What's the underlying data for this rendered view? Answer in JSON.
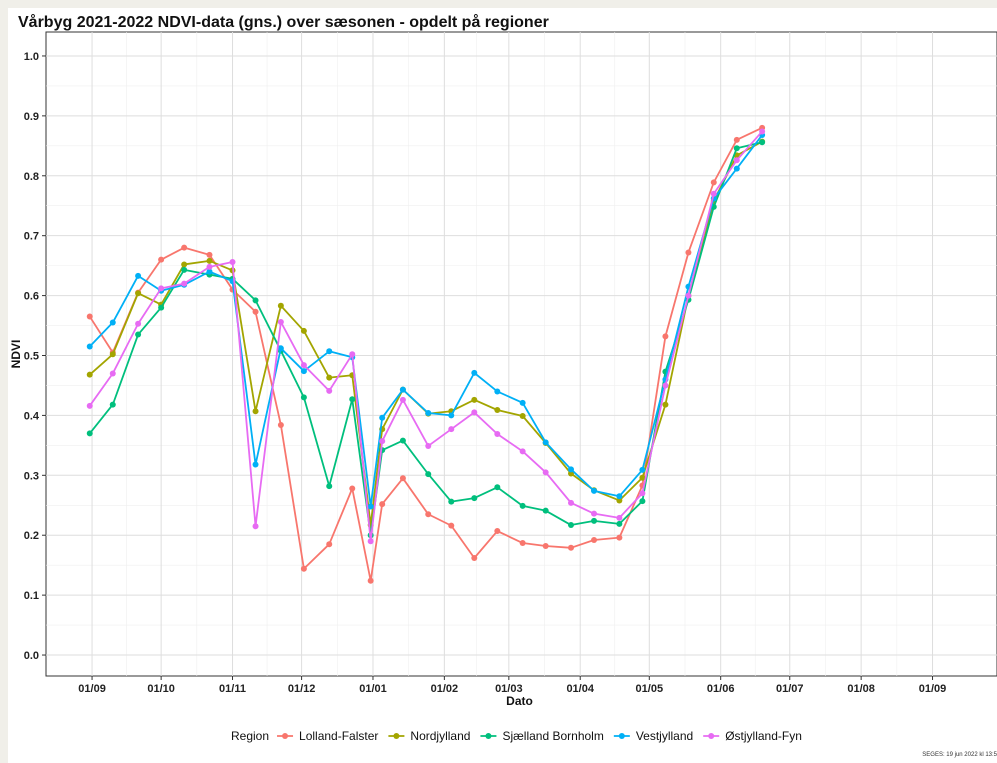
{
  "chart_data": {
    "type": "line",
    "title": "Vårbyg 2021-2022 NDVI-data (gns.) over sæsonen - opdelt på regioner",
    "xlabel": "Dato",
    "ylabel": "NDVI",
    "legend_title": "Region",
    "legend_position": "bottom",
    "grid": true,
    "ylim": [
      -0.035,
      1.04
    ],
    "xlim": [
      "2021-08-12",
      "2022-09-29"
    ],
    "yticks": [
      "0.0",
      "0.1",
      "0.2",
      "0.3",
      "0.4",
      "0.5",
      "0.6",
      "0.7",
      "0.8",
      "0.9",
      "1.0"
    ],
    "xtick_labels": [
      "01/09",
      "01/10",
      "01/11",
      "01/12",
      "01/01",
      "01/02",
      "01/03",
      "01/04",
      "01/05",
      "01/06",
      "01/07",
      "01/08",
      "01/09"
    ],
    "xtick_dates": [
      "2021-09-01",
      "2021-10-01",
      "2021-11-01",
      "2021-12-01",
      "2022-01-01",
      "2022-02-01",
      "2022-03-01",
      "2022-04-01",
      "2022-05-01",
      "2022-06-01",
      "2022-07-01",
      "2022-08-01",
      "2022-09-01"
    ],
    "series": [
      {
        "name": "Lolland-Falster",
        "color": "#F8766D",
        "points": [
          [
            "2021-08-31",
            0.565
          ],
          [
            "2021-09-10",
            0.505
          ],
          [
            "2021-09-21",
            0.605
          ],
          [
            "2021-10-01",
            0.66
          ],
          [
            "2021-10-11",
            0.68
          ],
          [
            "2021-10-22",
            0.668
          ],
          [
            "2021-11-01",
            0.61
          ],
          [
            "2021-11-11",
            0.573
          ],
          [
            "2021-11-22",
            0.384
          ],
          [
            "2021-12-02",
            0.144
          ],
          [
            "2021-12-13",
            0.185
          ],
          [
            "2021-12-23",
            0.278
          ],
          [
            "2021-12-31",
            0.124
          ],
          [
            "2022-01-05",
            0.252
          ],
          [
            "2022-01-14",
            0.295
          ],
          [
            "2022-01-25",
            0.235
          ],
          [
            "2022-02-04",
            0.216
          ],
          [
            "2022-02-14",
            0.162
          ],
          [
            "2022-02-24",
            0.207
          ],
          [
            "2022-03-07",
            0.187
          ],
          [
            "2022-03-17",
            0.182
          ],
          [
            "2022-03-28",
            0.179
          ],
          [
            "2022-04-07",
            0.192
          ],
          [
            "2022-04-18",
            0.196
          ],
          [
            "2022-04-28",
            0.283
          ],
          [
            "2022-05-08",
            0.532
          ],
          [
            "2022-05-18",
            0.672
          ],
          [
            "2022-05-29",
            0.789
          ],
          [
            "2022-06-08",
            0.86
          ],
          [
            "2022-06-19",
            0.88
          ]
        ]
      },
      {
        "name": "Nordjylland",
        "color": "#A3A500",
        "points": [
          [
            "2021-08-31",
            0.468
          ],
          [
            "2021-09-10",
            0.502
          ],
          [
            "2021-09-21",
            0.604
          ],
          [
            "2021-10-01",
            0.585
          ],
          [
            "2021-10-11",
            0.652
          ],
          [
            "2021-10-22",
            0.658
          ],
          [
            "2021-11-01",
            0.642
          ],
          [
            "2021-11-11",
            0.407
          ],
          [
            "2021-11-22",
            0.583
          ],
          [
            "2021-12-02",
            0.541
          ],
          [
            "2021-12-13",
            0.463
          ],
          [
            "2021-12-23",
            0.467
          ],
          [
            "2021-12-31",
            0.217
          ],
          [
            "2022-01-05",
            0.377
          ],
          [
            "2022-01-14",
            0.443
          ],
          [
            "2022-01-25",
            0.403
          ],
          [
            "2022-02-04",
            0.407
          ],
          [
            "2022-02-14",
            0.426
          ],
          [
            "2022-02-24",
            0.409
          ],
          [
            "2022-03-07",
            0.399
          ],
          [
            "2022-03-17",
            0.354
          ],
          [
            "2022-03-28",
            0.303
          ],
          [
            "2022-04-07",
            0.275
          ],
          [
            "2022-04-18",
            0.258
          ],
          [
            "2022-04-28",
            0.296
          ],
          [
            "2022-05-08",
            0.418
          ],
          [
            "2022-05-18",
            0.6
          ],
          [
            "2022-05-29",
            0.758
          ],
          [
            "2022-06-08",
            0.834
          ],
          [
            "2022-06-19",
            0.857
          ]
        ]
      },
      {
        "name": "Sjælland Bornholm",
        "color": "#00BF7D",
        "points": [
          [
            "2021-08-31",
            0.37
          ],
          [
            "2021-09-10",
            0.418
          ],
          [
            "2021-09-21",
            0.535
          ],
          [
            "2021-10-01",
            0.58
          ],
          [
            "2021-10-11",
            0.643
          ],
          [
            "2021-10-22",
            0.635
          ],
          [
            "2021-11-01",
            0.628
          ],
          [
            "2021-11-11",
            0.592
          ],
          [
            "2021-11-22",
            0.508
          ],
          [
            "2021-12-02",
            0.43
          ],
          [
            "2021-12-13",
            0.282
          ],
          [
            "2021-12-23",
            0.427
          ],
          [
            "2021-12-31",
            0.2
          ],
          [
            "2022-01-05",
            0.342
          ],
          [
            "2022-01-14",
            0.358
          ],
          [
            "2022-01-25",
            0.302
          ],
          [
            "2022-02-04",
            0.256
          ],
          [
            "2022-02-14",
            0.262
          ],
          [
            "2022-02-24",
            0.28
          ],
          [
            "2022-03-07",
            0.249
          ],
          [
            "2022-03-17",
            0.241
          ],
          [
            "2022-03-28",
            0.217
          ],
          [
            "2022-04-07",
            0.224
          ],
          [
            "2022-04-18",
            0.219
          ],
          [
            "2022-04-28",
            0.257
          ],
          [
            "2022-05-08",
            0.473
          ],
          [
            "2022-05-18",
            0.593
          ],
          [
            "2022-05-29",
            0.748
          ],
          [
            "2022-06-08",
            0.846
          ],
          [
            "2022-06-19",
            0.856
          ]
        ]
      },
      {
        "name": "Vestjylland",
        "color": "#00B0F6",
        "points": [
          [
            "2021-08-31",
            0.515
          ],
          [
            "2021-09-10",
            0.555
          ],
          [
            "2021-09-21",
            0.633
          ],
          [
            "2021-10-01",
            0.608
          ],
          [
            "2021-10-11",
            0.618
          ],
          [
            "2021-10-22",
            0.64
          ],
          [
            "2021-11-01",
            0.624
          ],
          [
            "2021-11-11",
            0.318
          ],
          [
            "2021-11-22",
            0.512
          ],
          [
            "2021-12-02",
            0.474
          ],
          [
            "2021-12-13",
            0.507
          ],
          [
            "2021-12-23",
            0.497
          ],
          [
            "2021-12-31",
            0.248
          ],
          [
            "2022-01-05",
            0.396
          ],
          [
            "2022-01-14",
            0.443
          ],
          [
            "2022-01-25",
            0.404
          ],
          [
            "2022-02-04",
            0.4
          ],
          [
            "2022-02-14",
            0.471
          ],
          [
            "2022-02-24",
            0.44
          ],
          [
            "2022-03-07",
            0.421
          ],
          [
            "2022-03-17",
            0.355
          ],
          [
            "2022-03-28",
            0.31
          ],
          [
            "2022-04-07",
            0.274
          ],
          [
            "2022-04-18",
            0.265
          ],
          [
            "2022-04-28",
            0.309
          ],
          [
            "2022-05-08",
            0.46
          ],
          [
            "2022-05-18",
            0.615
          ],
          [
            "2022-05-29",
            0.762
          ],
          [
            "2022-06-08",
            0.812
          ],
          [
            "2022-06-19",
            0.868
          ]
        ]
      },
      {
        "name": "Østjylland-Fyn",
        "color": "#E76BF3",
        "points": [
          [
            "2021-08-31",
            0.416
          ],
          [
            "2021-09-10",
            0.47
          ],
          [
            "2021-09-21",
            0.553
          ],
          [
            "2021-10-01",
            0.612
          ],
          [
            "2021-10-11",
            0.62
          ],
          [
            "2021-10-22",
            0.648
          ],
          [
            "2021-11-01",
            0.656
          ],
          [
            "2021-11-11",
            0.215
          ],
          [
            "2021-11-22",
            0.556
          ],
          [
            "2021-12-02",
            0.484
          ],
          [
            "2021-12-13",
            0.441
          ],
          [
            "2021-12-23",
            0.502
          ],
          [
            "2021-12-31",
            0.19
          ],
          [
            "2022-01-05",
            0.357
          ],
          [
            "2022-01-14",
            0.426
          ],
          [
            "2022-01-25",
            0.349
          ],
          [
            "2022-02-04",
            0.377
          ],
          [
            "2022-02-14",
            0.405
          ],
          [
            "2022-02-24",
            0.369
          ],
          [
            "2022-03-07",
            0.34
          ],
          [
            "2022-03-17",
            0.305
          ],
          [
            "2022-03-28",
            0.254
          ],
          [
            "2022-04-07",
            0.236
          ],
          [
            "2022-04-18",
            0.229
          ],
          [
            "2022-04-28",
            0.27
          ],
          [
            "2022-05-08",
            0.45
          ],
          [
            "2022-05-18",
            0.6
          ],
          [
            "2022-05-29",
            0.77
          ],
          [
            "2022-06-08",
            0.826
          ],
          [
            "2022-06-19",
            0.874
          ]
        ]
      }
    ]
  },
  "credit": "SEGES:  19 jun 2022 kl 13:5"
}
